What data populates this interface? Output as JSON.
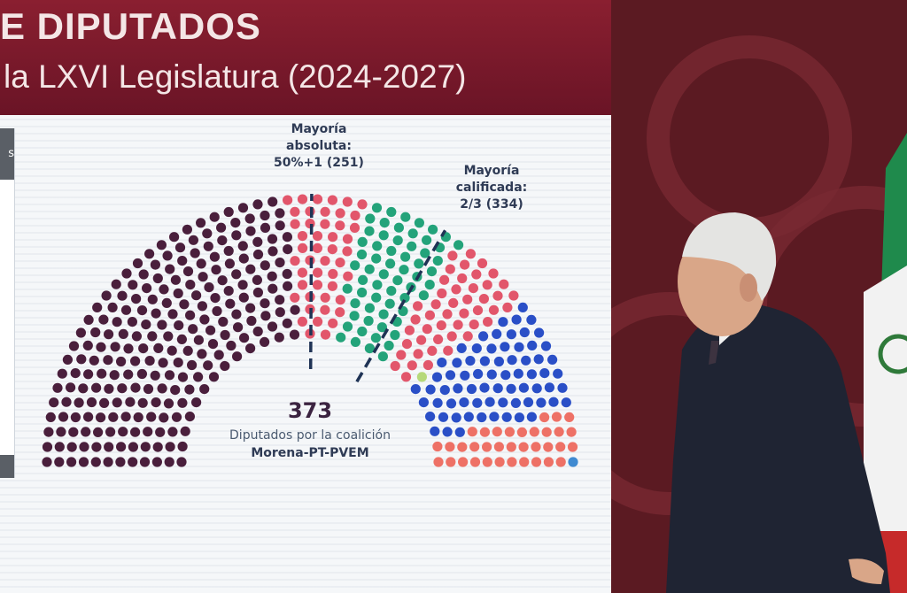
{
  "slide": {
    "title": "E DIPUTADOS",
    "subtitle": "la LXVI Legislatura (2024-2027)",
    "left_panel_label": "s"
  },
  "annotations": {
    "absolute_majority": [
      "Mayoría",
      "absoluta:",
      "50%+1 (251)"
    ],
    "qualified_majority": [
      "Mayoría",
      "calificada:",
      "2/3 (334)"
    ]
  },
  "coalition": {
    "total": "373",
    "label": "Diputados por la coalición",
    "name": "Morena-PT-PVEM"
  },
  "chart_data": {
    "type": "hemicycle",
    "total_seats": 500,
    "absolute_majority_line": 251,
    "qualified_majority_line": 334,
    "series": [
      {
        "values": [
          236
        ],
        "color": "#4a1f3c"
      },
      {
        "values": [
          47
        ],
        "color": "#e2566b"
      },
      {
        "values": [
          62
        ],
        "color": "#23a37a"
      },
      {
        "values": [
          47
        ],
        "color": "#e2566b"
      },
      {
        "values": [
          1
        ],
        "color": "#b6d97a"
      },
      {
        "values": [
          71
        ],
        "color": "#2a4fc7"
      },
      {
        "values": [
          35
        ],
        "color": "#ee7166"
      },
      {
        "values": [
          1
        ],
        "color": "#3f8ad1"
      }
    ]
  },
  "colors": {
    "header": "#7a1a2c",
    "backdrop": "#5b1a22",
    "suit": "#1f2433"
  }
}
